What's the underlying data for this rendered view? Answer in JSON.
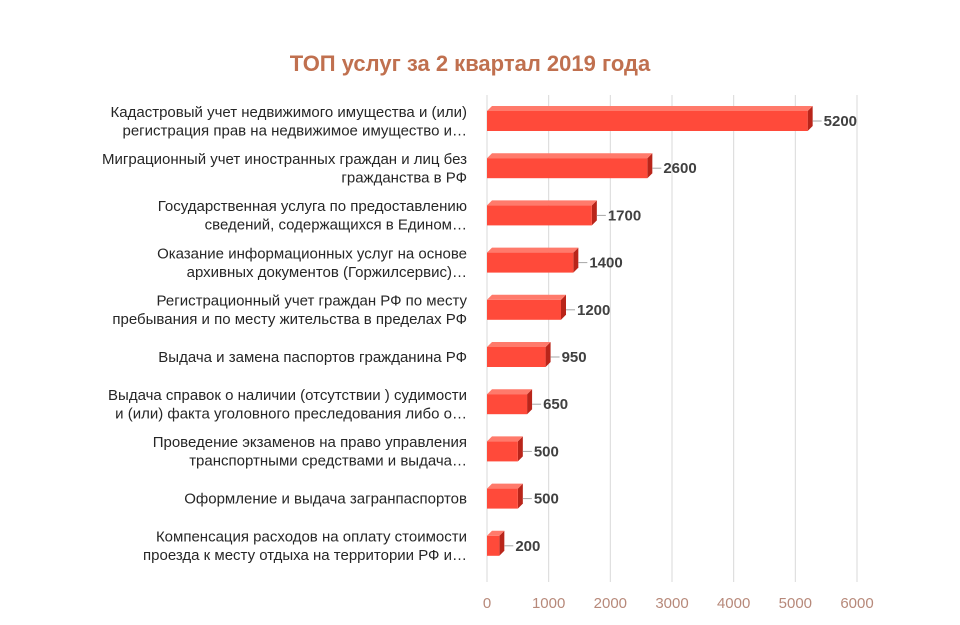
{
  "colors": {
    "title": "#C0704F",
    "bar_front": "#FF4A3A",
    "bar_top": "#FF7A6B",
    "bar_side": "#B9251A",
    "grid": "#D9D9D9",
    "tick": "#B7897A",
    "leader": "#A6A6A6"
  },
  "chart_data": {
    "type": "bar",
    "orientation": "horizontal",
    "title": "ТОП услуг за 2 квартал 2019 года",
    "xlim": [
      0,
      6000
    ],
    "xticks": [
      0,
      1000,
      2000,
      3000,
      4000,
      5000,
      6000
    ],
    "grid": true,
    "categories": [
      [
        "Кадастровый учет недвижимого имущества  и (или)",
        "регистрация прав на недвижимое имущество  и…"
      ],
      [
        "Миграционный учет иностранных граждан и лиц без",
        "гражданства в РФ"
      ],
      [
        "Государственная услуга  по предоставлению",
        "сведений,  содержащихся  в Едином…"
      ],
      [
        "Оказание  информационных  услуг  на основе",
        "архивных  документов  (Горжилсервис)…"
      ],
      [
        "Регистрационный  учет граждан РФ по месту",
        "пребывания и по месту жительства  в пределах  РФ"
      ],
      [
        "Выдача и замена паспортов гражданина  РФ"
      ],
      [
        "Выдача справок о наличии  (отсутствии )  судимости",
        "и (или)  факта уголовного преследования либо о…"
      ],
      [
        "Проведение экзаменов на право управления",
        "транспортными средствами и выдача…"
      ],
      [
        "Оформление  и выдача загранпаспортов"
      ],
      [
        "Компенсация  расходов на оплату  стоимости",
        "проезда к месту отдыха на территории  РФ и…"
      ]
    ],
    "values": [
      5200,
      2600,
      1700,
      1400,
      1200,
      950,
      650,
      500,
      500,
      200
    ],
    "data_labels": [
      "5200",
      "2600",
      "1700",
      "1400",
      "1200",
      "950",
      "650",
      "500",
      "500",
      "200"
    ]
  }
}
